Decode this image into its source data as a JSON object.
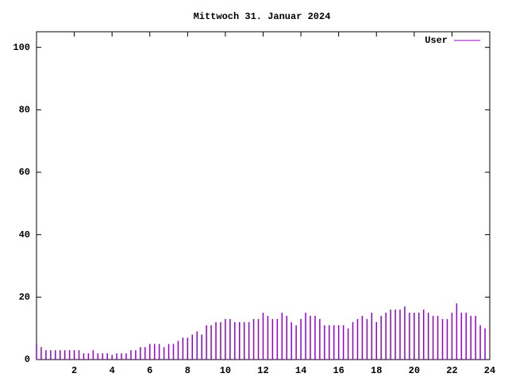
{
  "chart_data": {
    "type": "impulses",
    "title": "Mittwoch 31. Januar 2024",
    "x": [
      0,
      0.25,
      0.5,
      0.75,
      1,
      1.25,
      1.5,
      1.75,
      2,
      2.25,
      2.5,
      2.75,
      3,
      3.25,
      3.5,
      3.75,
      4,
      4.25,
      4.5,
      4.75,
      5,
      5.25,
      5.5,
      5.75,
      6,
      6.25,
      6.5,
      6.75,
      7,
      7.25,
      7.5,
      7.75,
      8,
      8.25,
      8.5,
      8.75,
      9,
      9.25,
      9.5,
      9.75,
      10,
      10.25,
      10.5,
      10.75,
      11,
      11.25,
      11.5,
      11.75,
      12,
      12.25,
      12.5,
      12.75,
      13,
      13.25,
      13.5,
      13.75,
      14,
      14.25,
      14.5,
      14.75,
      15,
      15.25,
      15.5,
      15.75,
      16,
      16.25,
      16.5,
      16.75,
      17,
      17.25,
      17.5,
      17.75,
      18,
      18.25,
      18.5,
      18.75,
      19,
      19.25,
      19.5,
      19.75,
      20,
      20.25,
      20.5,
      20.75,
      21,
      21.25,
      21.5,
      21.75,
      22,
      22.25,
      22.5,
      22.75,
      23,
      23.25,
      23.5,
      23.75
    ],
    "series": [
      {
        "name": "User",
        "color": "#9400d3",
        "values": [
          5,
          4,
          3,
          3,
          3,
          3,
          3,
          3,
          3,
          3,
          2,
          2,
          3,
          2,
          2,
          2,
          1,
          2,
          2,
          2,
          3,
          3,
          4,
          4,
          5,
          5,
          5,
          4,
          5,
          5,
          6,
          7,
          7,
          8,
          9,
          8,
          11,
          11,
          12,
          12,
          13,
          13,
          12,
          12,
          12,
          12,
          13,
          13,
          15,
          14,
          13,
          13,
          15,
          14,
          12,
          11,
          13,
          15,
          14,
          14,
          13,
          11,
          11,
          11,
          11,
          11,
          10,
          12,
          13,
          14,
          13,
          15,
          12,
          14,
          15,
          16,
          16,
          16,
          17,
          15,
          15,
          15,
          16,
          15,
          14,
          14,
          13,
          13,
          15,
          18,
          15,
          15,
          14,
          14,
          11,
          10
        ]
      }
    ],
    "xlim": [
      0,
      24
    ],
    "xticks": [
      2,
      4,
      6,
      8,
      10,
      12,
      14,
      16,
      18,
      20,
      22,
      24
    ],
    "ylim": [
      0,
      105
    ],
    "yticks": [
      0,
      20,
      40,
      60,
      80,
      100
    ],
    "legend": "top-right"
  }
}
